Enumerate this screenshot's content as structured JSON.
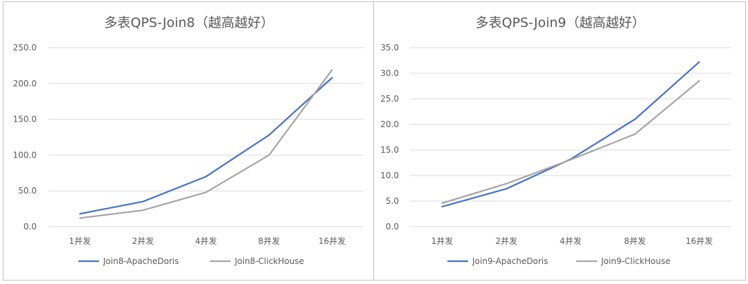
{
  "chart_data": [
    {
      "type": "line",
      "title": "多表QPS-Join8（越高越好）",
      "categories": [
        "1并发",
        "2并发",
        "4并发",
        "8并发",
        "16并发"
      ],
      "ylim": [
        0,
        250
      ],
      "yticks": [
        "0.0",
        "50.0",
        "100.0",
        "150.0",
        "200.0",
        "250.0"
      ],
      "grid": true,
      "legend_position": "bottom",
      "series": [
        {
          "name": "Join8-ApacheDoris",
          "color": "#4472C4",
          "values": [
            18,
            35,
            70,
            128,
            208
          ]
        },
        {
          "name": "Join8-ClickHouse",
          "color": "#A5A5A5",
          "values": [
            12,
            23,
            48,
            100,
            219
          ]
        }
      ]
    },
    {
      "type": "line",
      "title": "多表QPS-Join9（越高越好）",
      "categories": [
        "1并发",
        "2并发",
        "4并发",
        "8并发",
        "16并发"
      ],
      "ylim": [
        0,
        35
      ],
      "yticks": [
        "0.0",
        "5.0",
        "10.0",
        "15.0",
        "20.0",
        "25.0",
        "30.0",
        "35.0"
      ],
      "grid": true,
      "legend_position": "bottom",
      "series": [
        {
          "name": "Join9-ApacheDoris",
          "color": "#4472C4",
          "values": [
            3.9,
            7.4,
            13.2,
            21.0,
            32.2
          ]
        },
        {
          "name": "Join9-ClickHouse",
          "color": "#A5A5A5",
          "values": [
            4.6,
            8.4,
            13.1,
            18.1,
            28.5
          ]
        }
      ]
    }
  ]
}
